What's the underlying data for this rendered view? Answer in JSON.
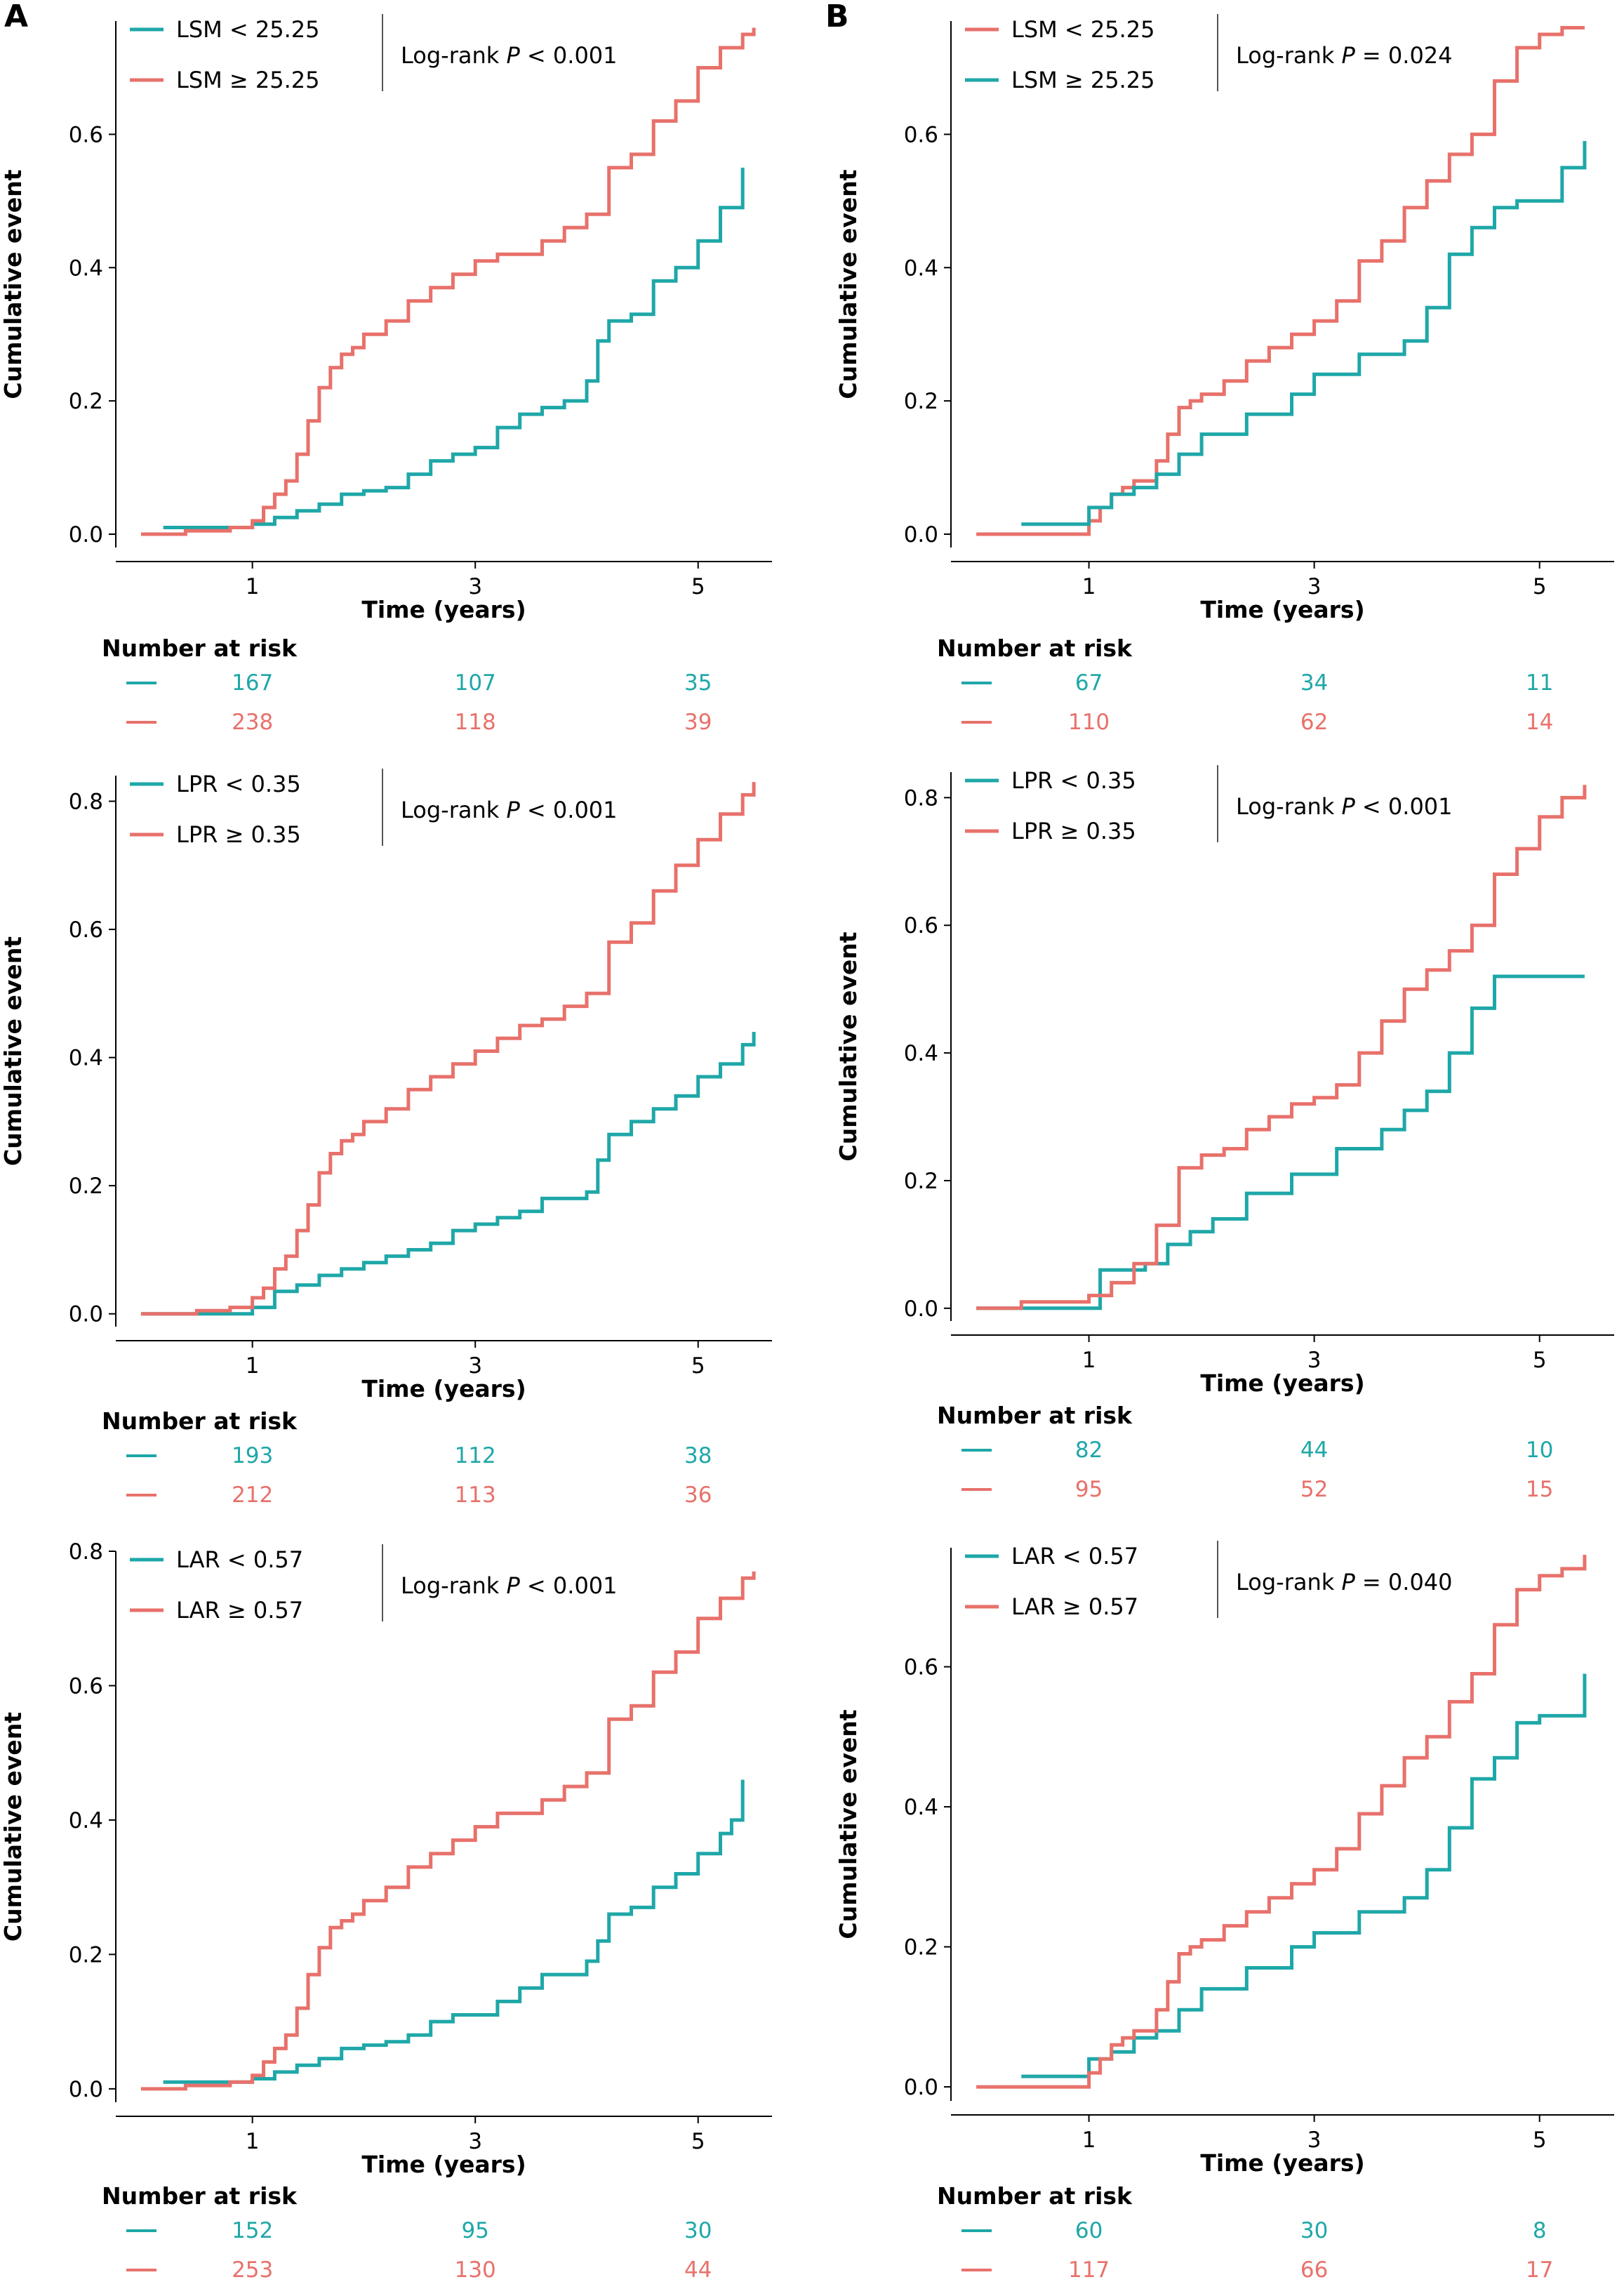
{
  "panel_letters": [
    "A",
    "B"
  ],
  "colors": {
    "low": "#1fa7a8",
    "high": "#e8716b",
    "axis": "#000000"
  },
  "chart_data": [
    {
      "type": "line",
      "title": "",
      "xlabel": "Time (years)",
      "ylabel": "Cumulative event",
      "xlim": [
        -0.1,
        5.6
      ],
      "ylim": [
        -0.02,
        0.77
      ],
      "x_ticks": [
        1,
        3,
        5
      ],
      "y_ticks": [
        0.0,
        0.2,
        0.4,
        0.6
      ],
      "y_tick_labels": [
        "0.0",
        "0.2",
        "0.4",
        "0.6"
      ],
      "legend": "top-left",
      "pvalue_prefix": "Log-rank ",
      "pvalue_italic": "P",
      "pvalue_suffix": " < 0.001",
      "series": [
        {
          "name": "LSM < 25.25",
          "color": "#1fa7a8",
          "x": [
            0.2,
            0.6,
            1.0,
            1.2,
            1.4,
            1.6,
            1.8,
            2.0,
            2.2,
            2.4,
            2.6,
            2.8,
            3.0,
            3.2,
            3.4,
            3.6,
            3.8,
            4.0,
            4.1,
            4.2,
            4.4,
            4.6,
            4.8,
            5.0,
            5.2,
            5.3,
            5.4
          ],
          "y": [
            0.01,
            0.01,
            0.015,
            0.025,
            0.035,
            0.045,
            0.06,
            0.065,
            0.07,
            0.09,
            0.11,
            0.12,
            0.13,
            0.16,
            0.18,
            0.19,
            0.2,
            0.23,
            0.29,
            0.32,
            0.33,
            0.38,
            0.4,
            0.44,
            0.49,
            0.49,
            0.55
          ]
        },
        {
          "name": "LSM ≥ 25.25",
          "color": "#e8716b",
          "x": [
            0.0,
            0.4,
            0.8,
            1.0,
            1.1,
            1.2,
            1.3,
            1.4,
            1.5,
            1.6,
            1.7,
            1.8,
            1.9,
            2.0,
            2.2,
            2.4,
            2.6,
            2.8,
            3.0,
            3.2,
            3.4,
            3.6,
            3.8,
            4.0,
            4.2,
            4.4,
            4.6,
            4.8,
            5.0,
            5.2,
            5.4,
            5.5
          ],
          "y": [
            0.0,
            0.005,
            0.01,
            0.02,
            0.04,
            0.06,
            0.08,
            0.12,
            0.17,
            0.22,
            0.25,
            0.27,
            0.28,
            0.3,
            0.32,
            0.35,
            0.37,
            0.39,
            0.41,
            0.42,
            0.42,
            0.44,
            0.46,
            0.48,
            0.55,
            0.57,
            0.62,
            0.65,
            0.7,
            0.73,
            0.75,
            0.76
          ]
        }
      ],
      "risk_table": {
        "title": "Number at risk",
        "rows": [
          {
            "color": "#1fa7a8",
            "values": [
              "167",
              "107",
              "35"
            ]
          },
          {
            "color": "#e8716b",
            "values": [
              "238",
              "118",
              "39"
            ]
          }
        ]
      }
    },
    {
      "type": "line",
      "title": "",
      "xlabel": "Time (years)",
      "ylabel": "Cumulative event",
      "xlim": [
        -0.1,
        5.6
      ],
      "ylim": [
        -0.02,
        0.77
      ],
      "x_ticks": [
        1,
        3,
        5
      ],
      "y_ticks": [
        0.0,
        0.2,
        0.4,
        0.6
      ],
      "y_tick_labels": [
        "0.0",
        "0.2",
        "0.4",
        "0.6"
      ],
      "legend": "top-left",
      "pvalue_prefix": "Log-rank ",
      "pvalue_italic": "P",
      "pvalue_suffix": " = 0.024",
      "series": [
        {
          "name": "LSM < 25.25",
          "color": "#e8716b",
          "x": [
            0.0,
            1.0,
            1.1,
            1.2,
            1.3,
            1.4,
            1.6,
            1.7,
            1.8,
            1.9,
            2.0,
            2.2,
            2.4,
            2.6,
            2.8,
            3.0,
            3.2,
            3.4,
            3.6,
            3.8,
            4.0,
            4.2,
            4.4,
            4.6,
            4.8,
            5.0,
            5.2,
            5.4
          ],
          "y": [
            0.0,
            0.02,
            0.04,
            0.06,
            0.07,
            0.08,
            0.11,
            0.15,
            0.19,
            0.2,
            0.21,
            0.23,
            0.26,
            0.28,
            0.3,
            0.32,
            0.35,
            0.41,
            0.44,
            0.49,
            0.53,
            0.57,
            0.6,
            0.68,
            0.73,
            0.75,
            0.76,
            0.76
          ]
        },
        {
          "name": "LSM ≥ 25.25",
          "color": "#1fa7a8",
          "x": [
            0.4,
            1.0,
            1.2,
            1.4,
            1.6,
            1.8,
            2.0,
            2.4,
            2.8,
            3.0,
            3.4,
            3.8,
            4.0,
            4.2,
            4.4,
            4.6,
            4.8,
            5.0,
            5.2,
            5.4
          ],
          "y": [
            0.015,
            0.04,
            0.06,
            0.07,
            0.09,
            0.12,
            0.15,
            0.18,
            0.21,
            0.24,
            0.27,
            0.29,
            0.34,
            0.42,
            0.46,
            0.49,
            0.5,
            0.5,
            0.55,
            0.59
          ]
        }
      ],
      "risk_table": {
        "title": "Number at risk",
        "rows": [
          {
            "color": "#1fa7a8",
            "values": [
              "67",
              "34",
              "11"
            ]
          },
          {
            "color": "#e8716b",
            "values": [
              "110",
              "62",
              "14"
            ]
          }
        ]
      }
    },
    {
      "type": "line",
      "title": "",
      "xlabel": "Time (years)",
      "ylabel": "Cumulative event",
      "xlim": [
        -0.1,
        5.6
      ],
      "ylim": [
        -0.02,
        0.84
      ],
      "x_ticks": [
        1,
        3,
        5
      ],
      "y_ticks": [
        0.0,
        0.2,
        0.4,
        0.6,
        0.8
      ],
      "y_tick_labels": [
        "0.0",
        "0.2",
        "0.4",
        "0.6",
        "0.8"
      ],
      "legend": "top-left",
      "pvalue_prefix": "Log-rank ",
      "pvalue_italic": "P",
      "pvalue_suffix": " < 0.001",
      "series": [
        {
          "name": "LPR < 0.35",
          "color": "#1fa7a8",
          "x": [
            0.0,
            1.0,
            1.2,
            1.4,
            1.6,
            1.8,
            2.0,
            2.2,
            2.4,
            2.6,
            2.8,
            3.0,
            3.2,
            3.4,
            3.6,
            3.8,
            4.0,
            4.1,
            4.2,
            4.4,
            4.6,
            4.8,
            5.0,
            5.2,
            5.4,
            5.5
          ],
          "y": [
            0.0,
            0.01,
            0.035,
            0.045,
            0.06,
            0.07,
            0.08,
            0.09,
            0.1,
            0.11,
            0.13,
            0.14,
            0.15,
            0.16,
            0.18,
            0.18,
            0.19,
            0.24,
            0.28,
            0.3,
            0.32,
            0.34,
            0.37,
            0.39,
            0.42,
            0.44
          ]
        },
        {
          "name": "LPR ≥ 0.35",
          "color": "#e8716b",
          "x": [
            0.0,
            0.5,
            0.8,
            1.0,
            1.1,
            1.2,
            1.3,
            1.4,
            1.5,
            1.6,
            1.7,
            1.8,
            1.9,
            2.0,
            2.2,
            2.4,
            2.6,
            2.8,
            3.0,
            3.2,
            3.4,
            3.6,
            3.8,
            4.0,
            4.2,
            4.4,
            4.6,
            4.8,
            5.0,
            5.2,
            5.4,
            5.5
          ],
          "y": [
            0.0,
            0.005,
            0.01,
            0.025,
            0.04,
            0.07,
            0.09,
            0.13,
            0.17,
            0.22,
            0.25,
            0.27,
            0.28,
            0.3,
            0.32,
            0.35,
            0.37,
            0.39,
            0.41,
            0.43,
            0.45,
            0.46,
            0.48,
            0.5,
            0.58,
            0.61,
            0.66,
            0.7,
            0.74,
            0.78,
            0.81,
            0.83
          ]
        }
      ],
      "risk_table": {
        "title": "Number at risk",
        "rows": [
          {
            "color": "#1fa7a8",
            "values": [
              "193",
              "112",
              "38"
            ]
          },
          {
            "color": "#e8716b",
            "values": [
              "212",
              "113",
              "36"
            ]
          }
        ]
      }
    },
    {
      "type": "line",
      "title": "",
      "xlabel": "Time (years)",
      "ylabel": "Cumulative event",
      "xlim": [
        -0.1,
        5.6
      ],
      "ylim": [
        -0.02,
        0.84
      ],
      "x_ticks": [
        1,
        3,
        5
      ],
      "y_ticks": [
        0.0,
        0.2,
        0.4,
        0.6,
        0.8
      ],
      "y_tick_labels": [
        "0.0",
        "0.2",
        "0.4",
        "0.6",
        "0.8"
      ],
      "legend": "top-left",
      "pvalue_prefix": "Log-rank ",
      "pvalue_italic": "P",
      "pvalue_suffix": " < 0.001",
      "series": [
        {
          "name": "LPR < 0.35",
          "color": "#1fa7a8",
          "x": [
            0.0,
            1.0,
            1.1,
            1.3,
            1.5,
            1.7,
            1.9,
            2.1,
            2.4,
            2.8,
            3.2,
            3.6,
            3.8,
            4.0,
            4.2,
            4.4,
            4.6,
            5.4
          ],
          "y": [
            0.0,
            0.0,
            0.06,
            0.06,
            0.07,
            0.1,
            0.12,
            0.14,
            0.18,
            0.21,
            0.25,
            0.28,
            0.31,
            0.34,
            0.4,
            0.47,
            0.52,
            0.52
          ]
        },
        {
          "name": "LPR ≥ 0.35",
          "color": "#e8716b",
          "x": [
            0.0,
            0.4,
            1.0,
            1.2,
            1.4,
            1.6,
            1.8,
            2.0,
            2.2,
            2.4,
            2.6,
            2.8,
            3.0,
            3.2,
            3.4,
            3.6,
            3.8,
            4.0,
            4.2,
            4.4,
            4.6,
            4.8,
            5.0,
            5.2,
            5.4
          ],
          "y": [
            0.0,
            0.01,
            0.02,
            0.04,
            0.07,
            0.13,
            0.22,
            0.24,
            0.25,
            0.28,
            0.3,
            0.32,
            0.33,
            0.35,
            0.4,
            0.45,
            0.5,
            0.53,
            0.56,
            0.6,
            0.68,
            0.72,
            0.77,
            0.8,
            0.82
          ]
        }
      ],
      "risk_table": {
        "title": "Number at risk",
        "rows": [
          {
            "color": "#1fa7a8",
            "values": [
              "82",
              "44",
              "10"
            ]
          },
          {
            "color": "#e8716b",
            "values": [
              "95",
              "52",
              "15"
            ]
          }
        ]
      }
    },
    {
      "type": "line",
      "title": "",
      "xlabel": "Time (years)",
      "ylabel": "Cumulative event",
      "xlim": [
        -0.1,
        5.6
      ],
      "ylim": [
        -0.02,
        0.8
      ],
      "x_ticks": [
        1,
        3,
        5
      ],
      "y_ticks": [
        0.0,
        0.2,
        0.4,
        0.6,
        0.8
      ],
      "y_tick_labels": [
        "0.0",
        "0.2",
        "0.4",
        "0.6",
        "0.8"
      ],
      "legend": "top-left",
      "pvalue_prefix": "Log-rank ",
      "pvalue_italic": "P",
      "pvalue_suffix": " < 0.001",
      "series": [
        {
          "name": "LAR < 0.57",
          "color": "#1fa7a8",
          "x": [
            0.2,
            0.6,
            1.0,
            1.2,
            1.4,
            1.6,
            1.8,
            2.0,
            2.2,
            2.4,
            2.6,
            2.8,
            3.0,
            3.2,
            3.4,
            3.6,
            3.8,
            4.0,
            4.1,
            4.2,
            4.4,
            4.6,
            4.8,
            5.0,
            5.2,
            5.3,
            5.4
          ],
          "y": [
            0.01,
            0.01,
            0.015,
            0.025,
            0.035,
            0.045,
            0.06,
            0.065,
            0.07,
            0.08,
            0.1,
            0.11,
            0.11,
            0.13,
            0.15,
            0.17,
            0.17,
            0.19,
            0.22,
            0.26,
            0.27,
            0.3,
            0.32,
            0.35,
            0.38,
            0.4,
            0.46
          ]
        },
        {
          "name": "LAR ≥ 0.57",
          "color": "#e8716b",
          "x": [
            0.0,
            0.4,
            0.8,
            1.0,
            1.1,
            1.2,
            1.3,
            1.4,
            1.5,
            1.6,
            1.7,
            1.8,
            1.9,
            2.0,
            2.2,
            2.4,
            2.6,
            2.8,
            3.0,
            3.2,
            3.4,
            3.6,
            3.8,
            4.0,
            4.2,
            4.4,
            4.6,
            4.8,
            5.0,
            5.2,
            5.4,
            5.5
          ],
          "y": [
            0.0,
            0.005,
            0.01,
            0.02,
            0.04,
            0.06,
            0.08,
            0.12,
            0.17,
            0.21,
            0.24,
            0.25,
            0.26,
            0.28,
            0.3,
            0.33,
            0.35,
            0.37,
            0.39,
            0.41,
            0.41,
            0.43,
            0.45,
            0.47,
            0.55,
            0.57,
            0.62,
            0.65,
            0.7,
            0.73,
            0.76,
            0.77
          ]
        }
      ],
      "risk_table": {
        "title": "Number at risk",
        "rows": [
          {
            "color": "#1fa7a8",
            "values": [
              "152",
              "95",
              "30"
            ]
          },
          {
            "color": "#e8716b",
            "values": [
              "253",
              "130",
              "44"
            ]
          }
        ]
      }
    },
    {
      "type": "line",
      "title": "",
      "xlabel": "Time (years)",
      "ylabel": "Cumulative event",
      "xlim": [
        -0.1,
        5.6
      ],
      "ylim": [
        -0.02,
        0.77
      ],
      "x_ticks": [
        1,
        3,
        5
      ],
      "y_ticks": [
        0.0,
        0.2,
        0.4,
        0.6
      ],
      "y_tick_labels": [
        "0.0",
        "0.2",
        "0.4",
        "0.6"
      ],
      "legend": "top-left",
      "pvalue_prefix": "Log-rank ",
      "pvalue_italic": "P",
      "pvalue_suffix": " = 0.040",
      "series": [
        {
          "name": "LAR < 0.57",
          "color": "#1fa7a8",
          "x": [
            0.4,
            1.0,
            1.2,
            1.4,
            1.6,
            1.8,
            2.0,
            2.4,
            2.8,
            3.0,
            3.4,
            3.8,
            4.0,
            4.2,
            4.4,
            4.6,
            4.8,
            5.0,
            5.2,
            5.4
          ],
          "y": [
            0.015,
            0.04,
            0.05,
            0.07,
            0.08,
            0.11,
            0.14,
            0.17,
            0.2,
            0.22,
            0.25,
            0.27,
            0.31,
            0.37,
            0.44,
            0.47,
            0.52,
            0.53,
            0.53,
            0.59
          ]
        },
        {
          "name": "LAR ≥ 0.57",
          "color": "#e8716b",
          "x": [
            0.0,
            1.0,
            1.1,
            1.2,
            1.3,
            1.4,
            1.6,
            1.7,
            1.8,
            1.9,
            2.0,
            2.2,
            2.4,
            2.6,
            2.8,
            3.0,
            3.2,
            3.4,
            3.6,
            3.8,
            4.0,
            4.2,
            4.4,
            4.6,
            4.8,
            5.0,
            5.2,
            5.4
          ],
          "y": [
            0.0,
            0.02,
            0.04,
            0.06,
            0.07,
            0.08,
            0.11,
            0.15,
            0.19,
            0.2,
            0.21,
            0.23,
            0.25,
            0.27,
            0.29,
            0.31,
            0.34,
            0.39,
            0.43,
            0.47,
            0.5,
            0.55,
            0.59,
            0.66,
            0.71,
            0.73,
            0.74,
            0.76
          ]
        }
      ],
      "risk_table": {
        "title": "Number at risk",
        "rows": [
          {
            "color": "#1fa7a8",
            "values": [
              "60",
              "30",
              "8"
            ]
          },
          {
            "color": "#e8716b",
            "values": [
              "117",
              "66",
              "17"
            ]
          }
        ]
      }
    }
  ]
}
